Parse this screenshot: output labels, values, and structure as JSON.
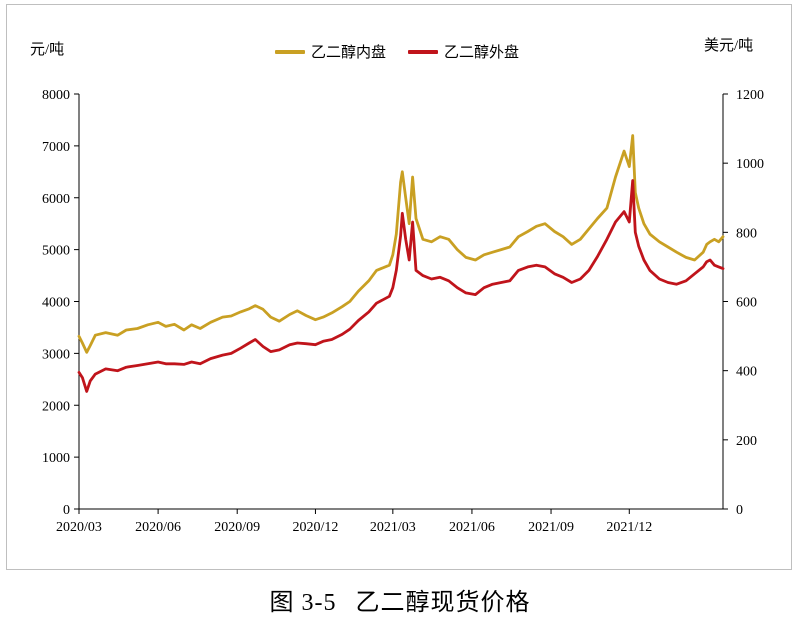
{
  "unit_left": "元/吨",
  "unit_right": "美元/吨",
  "caption": {
    "figure_no": "图 3-5",
    "title": "乙二醇现货价格"
  },
  "chart_data": {
    "type": "line",
    "x_ticks": [
      "2020/03",
      "2020/06",
      "2020/09",
      "2020/12",
      "2021/03",
      "2021/06",
      "2021/09",
      "2021/12"
    ],
    "x_range": [
      "2020-03-01",
      "2022-03-20"
    ],
    "y_left": {
      "label": "元/吨",
      "lim": [
        0,
        8000
      ],
      "ticks": [
        0,
        1000,
        2000,
        3000,
        4000,
        5000,
        6000,
        7000,
        8000
      ]
    },
    "y_right": {
      "label": "美元/吨",
      "lim": [
        0,
        1200
      ],
      "ticks": [
        0,
        200,
        400,
        600,
        800,
        1000,
        1200
      ]
    },
    "grid": false,
    "legend_position": "top-center",
    "series": [
      {
        "name": "乙二醇内盘",
        "axis": "left",
        "color": "#C9A023",
        "points": [
          [
            "2020-03-01",
            3330
          ],
          [
            "2020-03-05",
            3200
          ],
          [
            "2020-03-10",
            3020
          ],
          [
            "2020-03-14",
            3150
          ],
          [
            "2020-03-20",
            3350
          ],
          [
            "2020-04-01",
            3400
          ],
          [
            "2020-04-15",
            3350
          ],
          [
            "2020-04-25",
            3450
          ],
          [
            "2020-05-08",
            3480
          ],
          [
            "2020-05-20",
            3550
          ],
          [
            "2020-06-01",
            3600
          ],
          [
            "2020-06-10",
            3520
          ],
          [
            "2020-06-20",
            3560
          ],
          [
            "2020-07-01",
            3450
          ],
          [
            "2020-07-10",
            3550
          ],
          [
            "2020-07-20",
            3480
          ],
          [
            "2020-08-01",
            3600
          ],
          [
            "2020-08-15",
            3700
          ],
          [
            "2020-08-25",
            3720
          ],
          [
            "2020-09-05",
            3800
          ],
          [
            "2020-09-15",
            3860
          ],
          [
            "2020-09-22",
            3920
          ],
          [
            "2020-10-01",
            3850
          ],
          [
            "2020-10-10",
            3700
          ],
          [
            "2020-10-20",
            3620
          ],
          [
            "2020-11-01",
            3750
          ],
          [
            "2020-11-10",
            3820
          ],
          [
            "2020-11-20",
            3730
          ],
          [
            "2020-12-01",
            3650
          ],
          [
            "2020-12-10",
            3700
          ],
          [
            "2020-12-20",
            3780
          ],
          [
            "2021-01-01",
            3900
          ],
          [
            "2021-01-10",
            4000
          ],
          [
            "2021-01-20",
            4200
          ],
          [
            "2021-02-01",
            4400
          ],
          [
            "2021-02-10",
            4600
          ],
          [
            "2021-02-25",
            4700
          ],
          [
            "2021-03-01",
            4900
          ],
          [
            "2021-03-05",
            5300
          ],
          [
            "2021-03-10",
            6300
          ],
          [
            "2021-03-12",
            6500
          ],
          [
            "2021-03-16",
            6000
          ],
          [
            "2021-03-20",
            5500
          ],
          [
            "2021-03-24",
            6400
          ],
          [
            "2021-03-28",
            5600
          ],
          [
            "2021-04-05",
            5200
          ],
          [
            "2021-04-15",
            5150
          ],
          [
            "2021-04-25",
            5250
          ],
          [
            "2021-05-05",
            5200
          ],
          [
            "2021-05-15",
            5000
          ],
          [
            "2021-05-25",
            4850
          ],
          [
            "2021-06-05",
            4800
          ],
          [
            "2021-06-15",
            4900
          ],
          [
            "2021-06-25",
            4950
          ],
          [
            "2021-07-05",
            5000
          ],
          [
            "2021-07-15",
            5050
          ],
          [
            "2021-07-25",
            5250
          ],
          [
            "2021-08-05",
            5350
          ],
          [
            "2021-08-15",
            5450
          ],
          [
            "2021-08-25",
            5500
          ],
          [
            "2021-09-05",
            5350
          ],
          [
            "2021-09-15",
            5250
          ],
          [
            "2021-09-25",
            5100
          ],
          [
            "2021-10-05",
            5200
          ],
          [
            "2021-10-15",
            5400
          ],
          [
            "2021-10-25",
            5600
          ],
          [
            "2021-11-05",
            5800
          ],
          [
            "2021-11-15",
            6400
          ],
          [
            "2021-11-25",
            6900
          ],
          [
            "2021-12-01",
            6600
          ],
          [
            "2021-12-05",
            7200
          ],
          [
            "2021-12-08",
            6100
          ],
          [
            "2021-12-12",
            5800
          ],
          [
            "2021-12-18",
            5500
          ],
          [
            "2021-12-25",
            5300
          ],
          [
            "2022-01-05",
            5150
          ],
          [
            "2022-01-15",
            5050
          ],
          [
            "2022-01-25",
            4950
          ],
          [
            "2022-02-05",
            4850
          ],
          [
            "2022-02-15",
            4800
          ],
          [
            "2022-02-25",
            4950
          ],
          [
            "2022-03-01",
            5100
          ],
          [
            "2022-03-05",
            5150
          ],
          [
            "2022-03-10",
            5200
          ],
          [
            "2022-03-15",
            5150
          ],
          [
            "2022-03-20",
            5250
          ]
        ]
      },
      {
        "name": "乙二醇外盘",
        "axis": "right",
        "color": "#C0141B",
        "points": [
          [
            "2020-03-01",
            395
          ],
          [
            "2020-03-05",
            380
          ],
          [
            "2020-03-10",
            340
          ],
          [
            "2020-03-14",
            370
          ],
          [
            "2020-03-20",
            390
          ],
          [
            "2020-04-01",
            405
          ],
          [
            "2020-04-15",
            400
          ],
          [
            "2020-04-25",
            410
          ],
          [
            "2020-05-08",
            415
          ],
          [
            "2020-05-20",
            420
          ],
          [
            "2020-06-01",
            425
          ],
          [
            "2020-06-10",
            420
          ],
          [
            "2020-06-20",
            420
          ],
          [
            "2020-07-01",
            418
          ],
          [
            "2020-07-10",
            425
          ],
          [
            "2020-07-20",
            420
          ],
          [
            "2020-08-01",
            435
          ],
          [
            "2020-08-15",
            445
          ],
          [
            "2020-08-25",
            450
          ],
          [
            "2020-09-05",
            465
          ],
          [
            "2020-09-15",
            480
          ],
          [
            "2020-09-22",
            490
          ],
          [
            "2020-10-01",
            470
          ],
          [
            "2020-10-10",
            455
          ],
          [
            "2020-10-20",
            460
          ],
          [
            "2020-11-01",
            475
          ],
          [
            "2020-11-10",
            480
          ],
          [
            "2020-11-20",
            478
          ],
          [
            "2020-12-01",
            475
          ],
          [
            "2020-12-10",
            485
          ],
          [
            "2020-12-20",
            490
          ],
          [
            "2021-01-01",
            505
          ],
          [
            "2021-01-10",
            520
          ],
          [
            "2021-01-20",
            545
          ],
          [
            "2021-02-01",
            570
          ],
          [
            "2021-02-10",
            595
          ],
          [
            "2021-02-25",
            615
          ],
          [
            "2021-03-01",
            640
          ],
          [
            "2021-03-05",
            690
          ],
          [
            "2021-03-10",
            790
          ],
          [
            "2021-03-12",
            855
          ],
          [
            "2021-03-16",
            780
          ],
          [
            "2021-03-20",
            720
          ],
          [
            "2021-03-24",
            830
          ],
          [
            "2021-03-28",
            690
          ],
          [
            "2021-04-05",
            675
          ],
          [
            "2021-04-15",
            665
          ],
          [
            "2021-04-25",
            670
          ],
          [
            "2021-05-05",
            660
          ],
          [
            "2021-05-15",
            640
          ],
          [
            "2021-05-25",
            625
          ],
          [
            "2021-06-05",
            620
          ],
          [
            "2021-06-15",
            640
          ],
          [
            "2021-06-25",
            650
          ],
          [
            "2021-07-05",
            655
          ],
          [
            "2021-07-15",
            660
          ],
          [
            "2021-07-25",
            690
          ],
          [
            "2021-08-05",
            700
          ],
          [
            "2021-08-15",
            705
          ],
          [
            "2021-08-25",
            700
          ],
          [
            "2021-09-05",
            680
          ],
          [
            "2021-09-15",
            670
          ],
          [
            "2021-09-25",
            655
          ],
          [
            "2021-10-05",
            665
          ],
          [
            "2021-10-15",
            690
          ],
          [
            "2021-10-25",
            730
          ],
          [
            "2021-11-05",
            780
          ],
          [
            "2021-11-15",
            830
          ],
          [
            "2021-11-25",
            860
          ],
          [
            "2021-12-01",
            830
          ],
          [
            "2021-12-05",
            950
          ],
          [
            "2021-12-08",
            800
          ],
          [
            "2021-12-12",
            760
          ],
          [
            "2021-12-18",
            720
          ],
          [
            "2021-12-25",
            690
          ],
          [
            "2022-01-05",
            665
          ],
          [
            "2022-01-15",
            655
          ],
          [
            "2022-01-25",
            650
          ],
          [
            "2022-02-05",
            660
          ],
          [
            "2022-02-15",
            680
          ],
          [
            "2022-02-25",
            700
          ],
          [
            "2022-03-01",
            715
          ],
          [
            "2022-03-05",
            720
          ],
          [
            "2022-03-10",
            705
          ],
          [
            "2022-03-15",
            700
          ],
          [
            "2022-03-20",
            695
          ]
        ]
      }
    ]
  }
}
